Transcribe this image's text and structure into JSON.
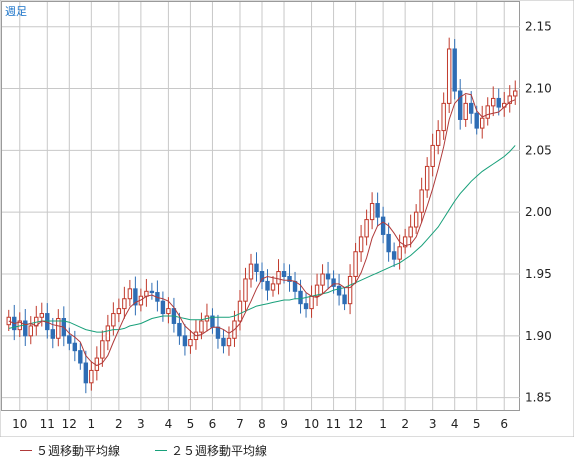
{
  "chart_data": {
    "type": "candlestick",
    "period_label": "週足",
    "ylim": [
      1.84,
      2.17
    ],
    "yticks": [
      1.85,
      1.9,
      1.95,
      2.0,
      2.05,
      2.1,
      2.15
    ],
    "ytick_labels": [
      "1.85",
      "1.90",
      "1.95",
      "2.00",
      "2.05",
      "2.10",
      "2.15"
    ],
    "xtick_labels": [
      "10",
      "11",
      "12",
      "1",
      "2",
      "3",
      "4",
      "5",
      "6",
      "7",
      "8",
      "9",
      "10",
      "11",
      "12",
      "1",
      "2",
      "3",
      "4",
      "5",
      "6"
    ],
    "xtick_week_index": [
      2,
      7,
      11,
      15,
      20,
      24,
      29,
      33,
      37,
      42,
      46,
      50,
      55,
      59,
      63,
      68,
      72,
      77,
      81,
      85,
      90
    ],
    "colors": {
      "up": "#c0392b",
      "down": "#2e6db4",
      "ma5": "#b03a3a",
      "ma25": "#18a07a",
      "grid": "#c8c8c8"
    },
    "legend": [
      {
        "name": "５週移動平均線",
        "color": "#b03a3a"
      },
      {
        "name": "２５週移動平均線",
        "color": "#18a07a"
      }
    ],
    "close": [
      1.915,
      1.905,
      1.912,
      1.9,
      1.908,
      1.915,
      1.918,
      1.905,
      1.898,
      1.914,
      1.9,
      1.894,
      1.888,
      1.878,
      1.862,
      1.872,
      1.882,
      1.896,
      1.908,
      1.918,
      1.922,
      1.93,
      1.938,
      1.925,
      1.932,
      1.936,
      1.935,
      1.928,
      1.918,
      1.922,
      1.91,
      1.9,
      1.892,
      1.897,
      1.903,
      1.912,
      1.916,
      1.907,
      1.898,
      1.892,
      1.898,
      1.912,
      1.928,
      1.946,
      1.958,
      1.952,
      1.944,
      1.937,
      1.942,
      1.952,
      1.948,
      1.944,
      1.936,
      1.926,
      1.922,
      1.932,
      1.941,
      1.95,
      1.946,
      1.94,
      1.933,
      1.926,
      1.948,
      1.968,
      1.98,
      1.994,
      2.007,
      1.996,
      1.982,
      1.968,
      1.962,
      1.972,
      1.98,
      1.988,
      2.0,
      2.018,
      2.037,
      2.054,
      2.066,
      2.088,
      2.132,
      2.098,
      2.075,
      2.088,
      2.08,
      2.068,
      2.076,
      2.086,
      2.092,
      2.085,
      2.088,
      2.094,
      2.098
    ],
    "ma5": [
      1.912,
      1.91,
      1.911,
      1.909,
      1.91,
      1.908,
      1.912,
      1.911,
      1.909,
      1.908,
      1.907,
      1.902,
      1.899,
      1.895,
      1.884,
      1.879,
      1.876,
      1.878,
      1.884,
      1.895,
      1.905,
      1.915,
      1.923,
      1.927,
      1.929,
      1.932,
      1.933,
      1.931,
      1.93,
      1.928,
      1.923,
      1.916,
      1.908,
      1.904,
      1.9,
      1.901,
      1.904,
      1.907,
      1.907,
      1.905,
      1.902,
      1.905,
      1.91,
      1.919,
      1.928,
      1.938,
      1.946,
      1.948,
      1.947,
      1.946,
      1.945,
      1.945,
      1.944,
      1.941,
      1.935,
      1.932,
      1.931,
      1.934,
      1.938,
      1.942,
      1.942,
      1.939,
      1.939,
      1.943,
      1.951,
      1.963,
      1.979,
      1.989,
      1.992,
      1.989,
      1.983,
      1.976,
      1.973,
      1.974,
      1.98,
      1.992,
      2.005,
      2.019,
      2.035,
      2.053,
      2.075,
      2.088,
      2.093,
      2.096,
      2.095,
      2.082,
      2.077,
      2.079,
      2.08,
      2.081,
      2.085,
      2.089,
      2.091
    ],
    "ma25": [
      1.906,
      1.907,
      1.908,
      1.909,
      1.91,
      1.911,
      1.912,
      1.912,
      1.912,
      1.912,
      1.912,
      1.911,
      1.909,
      1.907,
      1.905,
      1.904,
      1.903,
      1.903,
      1.904,
      1.905,
      1.905,
      1.906,
      1.908,
      1.909,
      1.91,
      1.912,
      1.914,
      1.915,
      1.916,
      1.916,
      1.916,
      1.915,
      1.914,
      1.913,
      1.913,
      1.913,
      1.914,
      1.915,
      1.915,
      1.915,
      1.915,
      1.916,
      1.918,
      1.92,
      1.922,
      1.924,
      1.925,
      1.926,
      1.927,
      1.928,
      1.929,
      1.929,
      1.93,
      1.93,
      1.931,
      1.932,
      1.933,
      1.934,
      1.935,
      1.937,
      1.938,
      1.939,
      1.941,
      1.943,
      1.945,
      1.947,
      1.949,
      1.951,
      1.953,
      1.955,
      1.957,
      1.959,
      1.962,
      1.965,
      1.969,
      1.973,
      1.978,
      1.983,
      1.988,
      1.995,
      2.002,
      2.009,
      2.015,
      2.02,
      2.025,
      2.029,
      2.033,
      2.036,
      2.039,
      2.042,
      2.045,
      2.049,
      2.054
    ]
  }
}
